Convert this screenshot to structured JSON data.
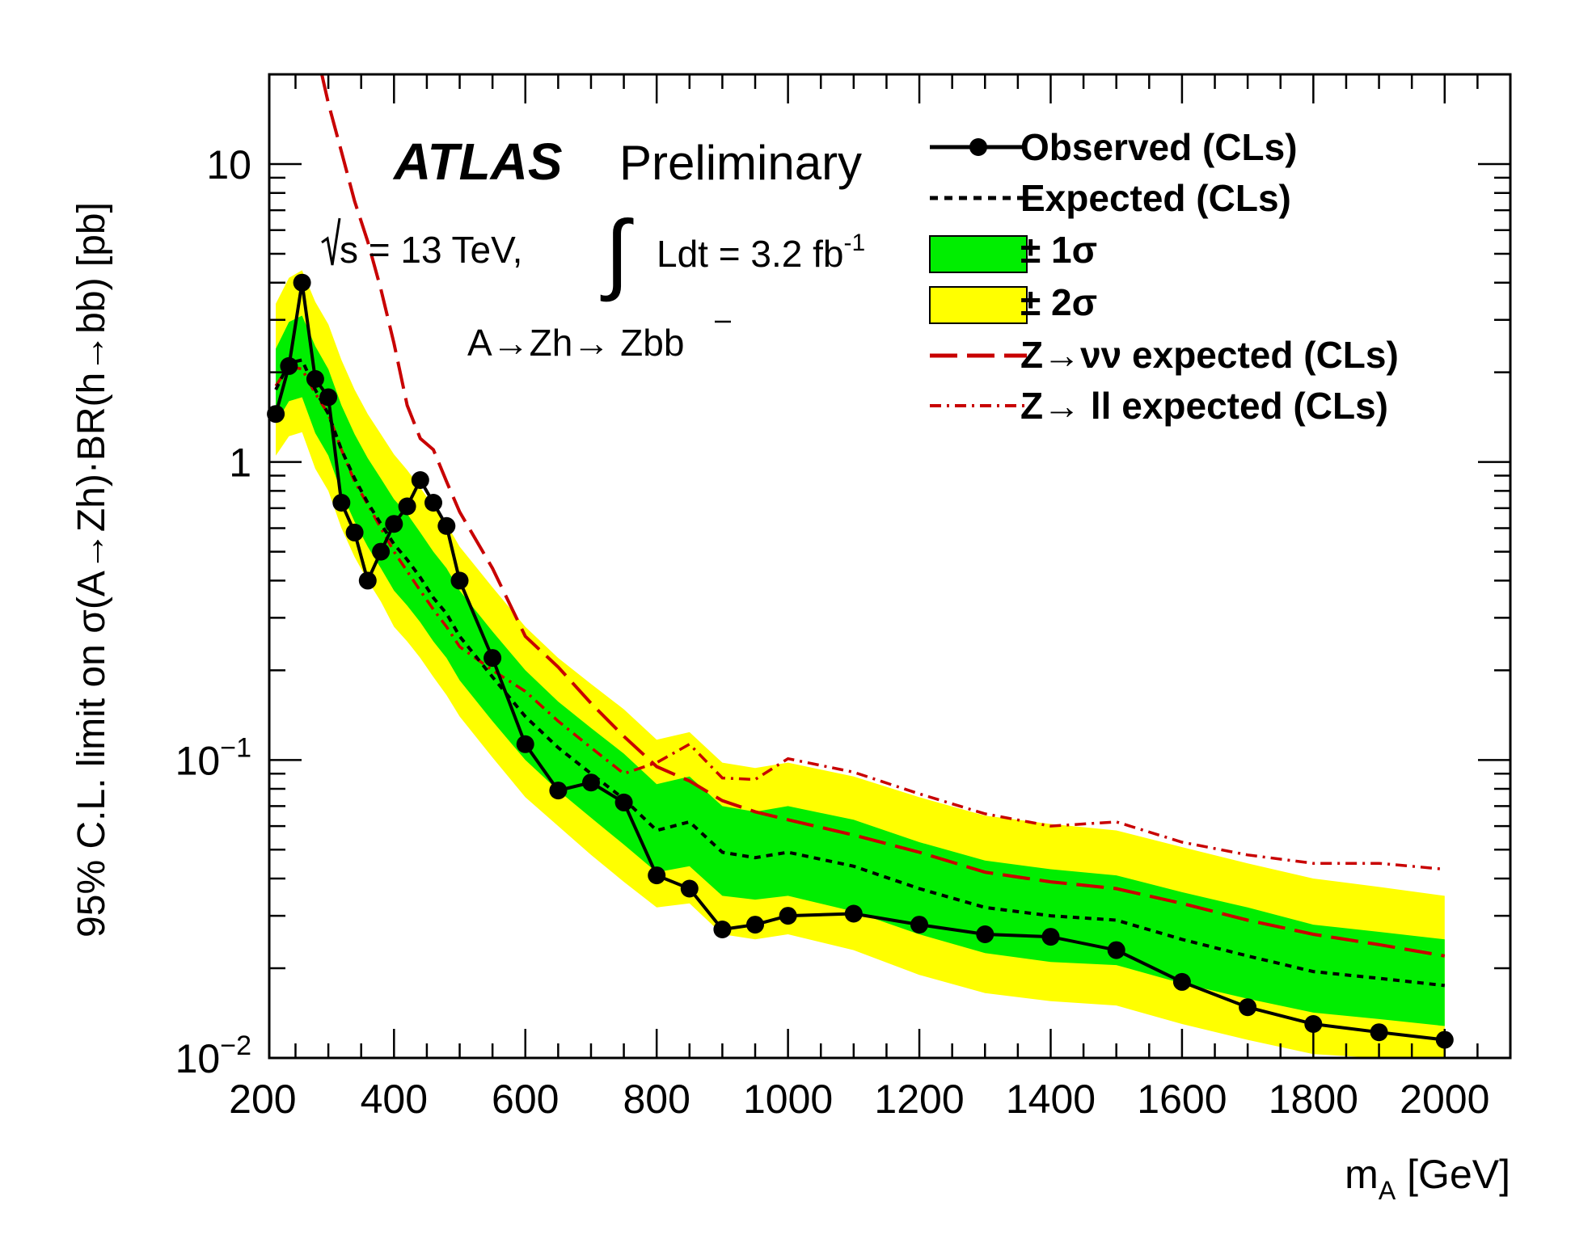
{
  "chart_data": {
    "type": "line",
    "title": "",
    "xlabel": "m",
    "xlabel_sub": "A",
    "xlabel_unit": "[GeV]",
    "ylabel": "95% C.L. limit on σ(A→Zh)·BR(h→bb) [pb]",
    "xlim": [
      210,
      2100
    ],
    "ylim": [
      0.01,
      20
    ],
    "yscale": "log",
    "x_ticks": [
      200,
      400,
      600,
      800,
      1000,
      1200,
      1400,
      1600,
      1800,
      2000
    ],
    "x_tick_labels": [
      "200",
      "400",
      "600",
      "800",
      "1000",
      "1200",
      "1400",
      "1600",
      "1800",
      "2000"
    ],
    "y_tick_labels": [
      {
        "value": 10,
        "base": "10",
        "exp": ""
      },
      {
        "value": 1,
        "base": "1",
        "exp": ""
      },
      {
        "value": 0.1,
        "base": "10",
        "exp": "−1"
      },
      {
        "value": 0.01,
        "base": "10",
        "exp": "−2"
      }
    ],
    "annotations": {
      "atlas": "ATLAS",
      "preliminary": "Preliminary",
      "energy": "s = 13 TeV,",
      "lumi": "Ldt = 3.2 fb",
      "lumi_exp": "-1",
      "process": "A→Zh→ Zbb"
    },
    "legend": {
      "placement": "top-right",
      "entries": [
        {
          "key": "observed",
          "label": "Observed (CLs)"
        },
        {
          "key": "expected",
          "label": "Expected (CLs)"
        },
        {
          "key": "band1",
          "label": "± 1σ"
        },
        {
          "key": "band2",
          "label": "± 2σ"
        },
        {
          "key": "nunu",
          "label": "Z→νν expected (CLs)"
        },
        {
          "key": "ll",
          "label": "Z→ ll expected (CLs)"
        }
      ]
    },
    "colors": {
      "observed": "#000000",
      "expected": "#000000",
      "band1": "#00ee00",
      "band2": "#ffff00",
      "nunu": "#c80000",
      "ll": "#c80000"
    },
    "series": [
      {
        "name": "Observed (CLs)",
        "x": [
          220,
          240,
          260,
          280,
          300,
          320,
          340,
          360,
          380,
          400,
          420,
          440,
          460,
          480,
          500,
          550,
          600,
          650,
          700,
          750,
          800,
          850,
          900,
          950,
          1000,
          1100,
          1200,
          1300,
          1400,
          1500,
          1600,
          1700,
          1800,
          1900,
          2000
        ],
        "y": [
          1.45,
          2.1,
          4.0,
          1.9,
          1.65,
          0.73,
          0.58,
          0.4,
          0.5,
          0.62,
          0.71,
          0.87,
          0.73,
          0.61,
          0.4,
          0.22,
          0.113,
          0.079,
          0.084,
          0.072,
          0.041,
          0.037,
          0.027,
          0.028,
          0.03,
          0.0305,
          0.028,
          0.026,
          0.0255,
          0.023,
          0.018,
          0.0148,
          0.013,
          0.0122,
          0.0115
        ]
      },
      {
        "name": "Expected (CLs)",
        "x": [
          220,
          240,
          260,
          280,
          300,
          320,
          340,
          360,
          380,
          400,
          420,
          440,
          460,
          480,
          500,
          550,
          600,
          650,
          700,
          750,
          800,
          850,
          900,
          950,
          1000,
          1100,
          1200,
          1300,
          1400,
          1500,
          1600,
          1700,
          1800,
          1900,
          2000
        ],
        "y": [
          1.75,
          2.15,
          2.2,
          1.75,
          1.45,
          1.1,
          0.88,
          0.73,
          0.62,
          0.53,
          0.47,
          0.41,
          0.35,
          0.31,
          0.26,
          0.19,
          0.14,
          0.11,
          0.09,
          0.074,
          0.058,
          0.062,
          0.049,
          0.047,
          0.049,
          0.044,
          0.037,
          0.032,
          0.03,
          0.029,
          0.025,
          0.022,
          0.0195,
          0.0185,
          0.0175
        ]
      },
      {
        "name": "± 1σ",
        "x": [
          220,
          240,
          260,
          280,
          300,
          320,
          340,
          360,
          380,
          400,
          420,
          440,
          460,
          480,
          500,
          550,
          600,
          650,
          700,
          750,
          800,
          850,
          900,
          950,
          1000,
          1100,
          1200,
          1300,
          1400,
          1500,
          1600,
          1700,
          1800,
          1900,
          2000
        ],
        "low": [
          1.35,
          1.6,
          1.65,
          1.25,
          1.05,
          0.79,
          0.63,
          0.52,
          0.44,
          0.37,
          0.33,
          0.29,
          0.25,
          0.22,
          0.185,
          0.135,
          0.1,
          0.079,
          0.064,
          0.052,
          0.042,
          0.044,
          0.035,
          0.034,
          0.035,
          0.031,
          0.026,
          0.0225,
          0.021,
          0.0205,
          0.0178,
          0.0158,
          0.0142,
          0.0135,
          0.0128
        ],
        "high": [
          2.4,
          2.95,
          3.1,
          2.45,
          2.05,
          1.55,
          1.24,
          1.03,
          0.88,
          0.75,
          0.67,
          0.58,
          0.5,
          0.44,
          0.37,
          0.27,
          0.2,
          0.157,
          0.128,
          0.105,
          0.083,
          0.088,
          0.07,
          0.067,
          0.07,
          0.063,
          0.053,
          0.046,
          0.043,
          0.041,
          0.036,
          0.032,
          0.028,
          0.0265,
          0.025
        ]
      },
      {
        "name": "± 2σ",
        "x": [
          220,
          240,
          260,
          280,
          300,
          320,
          340,
          360,
          380,
          400,
          420,
          440,
          460,
          480,
          500,
          550,
          600,
          650,
          700,
          750,
          800,
          850,
          900,
          950,
          1000,
          1100,
          1200,
          1300,
          1400,
          1500,
          1600,
          1700,
          1800,
          1900,
          2000
        ],
        "low": [
          1.05,
          1.22,
          1.26,
          0.95,
          0.8,
          0.6,
          0.48,
          0.4,
          0.34,
          0.28,
          0.25,
          0.22,
          0.19,
          0.165,
          0.14,
          0.102,
          0.075,
          0.06,
          0.048,
          0.039,
          0.032,
          0.033,
          0.026,
          0.025,
          0.026,
          0.023,
          0.019,
          0.0165,
          0.0155,
          0.015,
          0.013,
          0.0115,
          0.0103,
          0.0098,
          0.0093
        ],
        "high": [
          3.4,
          4.15,
          4.4,
          3.45,
          2.9,
          2.2,
          1.75,
          1.45,
          1.24,
          1.06,
          0.94,
          0.82,
          0.71,
          0.62,
          0.52,
          0.38,
          0.28,
          0.22,
          0.18,
          0.148,
          0.117,
          0.124,
          0.098,
          0.094,
          0.098,
          0.088,
          0.075,
          0.065,
          0.061,
          0.058,
          0.051,
          0.045,
          0.04,
          0.0375,
          0.035
        ]
      },
      {
        "name": "Z→νν expected (CLs)",
        "x": [
          290,
          300,
          320,
          340,
          360,
          380,
          400,
          420,
          440,
          460,
          480,
          500,
          550,
          600,
          650,
          700,
          750,
          800,
          850,
          900,
          950,
          1000,
          1100,
          1200,
          1300,
          1400,
          1500,
          1600,
          1700,
          1800,
          1900,
          2000
        ],
        "y": [
          20,
          16,
          11,
          7.5,
          5.5,
          3.8,
          2.5,
          1.55,
          1.2,
          1.1,
          0.86,
          0.68,
          0.44,
          0.26,
          0.205,
          0.155,
          0.12,
          0.095,
          0.085,
          0.073,
          0.067,
          0.063,
          0.056,
          0.049,
          0.042,
          0.039,
          0.037,
          0.033,
          0.029,
          0.026,
          0.024,
          0.022
        ]
      },
      {
        "name": "Z→ ll expected (CLs)",
        "x": [
          220,
          240,
          260,
          280,
          300,
          320,
          340,
          360,
          380,
          400,
          420,
          440,
          460,
          480,
          500,
          550,
          600,
          650,
          700,
          750,
          800,
          850,
          900,
          950,
          1000,
          1100,
          1200,
          1300,
          1400,
          1500,
          1600,
          1700,
          1800,
          1900,
          2000
        ],
        "y": [
          1.8,
          2.1,
          2.05,
          1.7,
          1.45,
          1.1,
          0.86,
          0.72,
          0.6,
          0.5,
          0.43,
          0.37,
          0.32,
          0.28,
          0.24,
          0.2,
          0.17,
          0.135,
          0.11,
          0.09,
          0.098,
          0.113,
          0.087,
          0.086,
          0.101,
          0.091,
          0.077,
          0.066,
          0.06,
          0.062,
          0.053,
          0.048,
          0.045,
          0.045,
          0.043
        ]
      }
    ]
  }
}
